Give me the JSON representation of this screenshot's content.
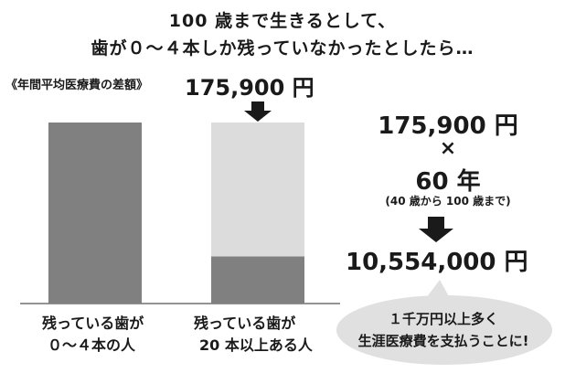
{
  "header": {
    "line1": "100 歳まで生きるとして、",
    "line2": "歯が０～４本しか残っていなかったとしたら…"
  },
  "chart_data": {
    "type": "bar",
    "categories": [
      {
        "line1": "残っている歯が",
        "line2": "０～４本の人"
      },
      {
        "line1": "残っている歯が",
        "line2": "20 本以上ある人"
      }
    ],
    "values": [
      1.0,
      0.26
    ],
    "difference_fraction_of_bar2": 0.74,
    "colors": {
      "bar": "#808080",
      "difference": "#dcdcdc"
    },
    "difference_label": "《年間平均医療費の差額》",
    "difference_value": "175,900 円"
  },
  "calculation": {
    "annual": "175,900 円",
    "times": "×",
    "years": "60 年",
    "years_note": "(40 歳から 100 歳まで)",
    "total": "10,554,000 円"
  },
  "bubble": {
    "line1": "１千万円以上多く",
    "line2": "生涯医療費を支払うことに!",
    "color": "#e0e0e0"
  }
}
